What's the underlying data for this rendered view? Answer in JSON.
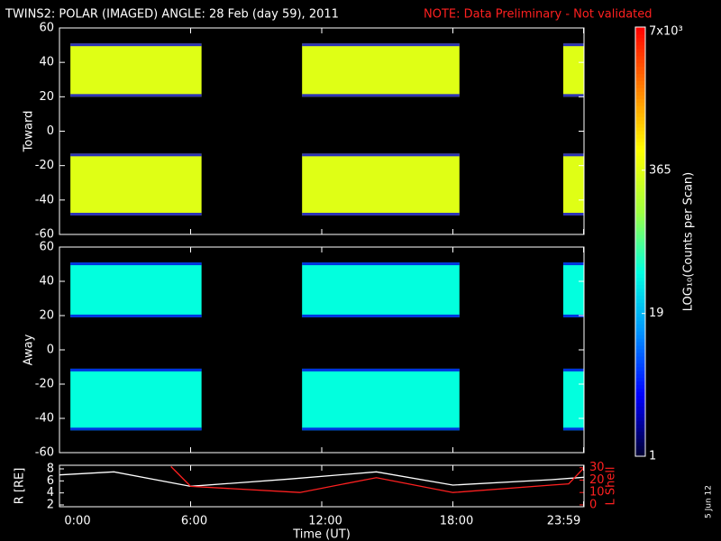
{
  "title": "TWINS2: POLAR (IMAGED) ANGLE: 28 Feb (day  59), 2011",
  "note": "NOTE: Data Preliminary - Not validated",
  "date_stamp": "5 Jun 12",
  "chart_data": [
    {
      "type": "heatmap",
      "ylabel": "Toward",
      "ylim": [
        -60,
        60
      ],
      "yticks": [
        -60,
        -40,
        -20,
        0,
        20,
        40,
        60
      ],
      "xlim": [
        0,
        24
      ],
      "intervals": [
        [
          0.5,
          6.5
        ],
        [
          11.1,
          18.3
        ],
        [
          23.05,
          24
        ]
      ],
      "bands": [
        {
          "range": [
            20,
            51
          ],
          "value": 365
        },
        {
          "range": [
            -49,
            -13
          ],
          "value": 365
        }
      ]
    },
    {
      "type": "heatmap",
      "ylabel": "Away",
      "ylim": [
        -60,
        60
      ],
      "yticks": [
        -60,
        -40,
        -20,
        0,
        20,
        40,
        60
      ],
      "xlim": [
        0,
        24
      ],
      "intervals": [
        [
          0.5,
          6.5
        ],
        [
          11.1,
          18.3
        ],
        [
          23.05,
          24
        ]
      ],
      "bands": [
        {
          "range": [
            19,
            51
          ],
          "value": 45
        },
        {
          "range": [
            -47,
            -11
          ],
          "value": 45
        }
      ]
    },
    {
      "type": "line",
      "xlabel": "Time (UT)",
      "ylabel": "R [RE]",
      "y2label": "L Shell",
      "xlim": [
        0,
        24
      ],
      "xticks": [
        {
          "value": 0,
          "label": "0:00"
        },
        {
          "value": 6,
          "label": "6:00"
        },
        {
          "value": 12,
          "label": "12:00"
        },
        {
          "value": 18,
          "label": "18:00"
        },
        {
          "value": 23.98,
          "label": "23:59"
        }
      ],
      "ylim": [
        1.7,
        8.6
      ],
      "yticks": [
        2,
        4,
        6,
        8
      ],
      "y2lim": [
        -1.5,
        32
      ],
      "y2ticks": [
        0,
        10,
        20,
        30
      ],
      "series": [
        {
          "color": "#ffffff",
          "x": [
            0,
            2.5,
            6,
            10.5,
            14.5,
            18,
            22.5,
            24
          ],
          "values": [
            7,
            7.5,
            5.1,
            6.3,
            7.5,
            5.3,
            6.2,
            6.6
          ]
        },
        {
          "color": "#ff2020",
          "axis": "y2",
          "x": [
            5.1,
            6,
            11,
            14.5,
            18,
            22.5,
            23.3,
            24
          ],
          "values": [
            31,
            15,
            10,
            22,
            10,
            16,
            17,
            30
          ]
        }
      ]
    },
    {
      "type": "colorbar",
      "label": "LOG₁₀(Counts per Scan)",
      "log": true,
      "zlim": [
        1,
        7000
      ],
      "zticks": [
        1,
        19,
        365,
        {
          "value": 7000,
          "label": "7x10³"
        }
      ],
      "colors": [
        "#000030",
        "#0000ff",
        "#0090ff",
        "#00ffe0",
        "#a0ff40",
        "#ffff00",
        "#ff8000",
        "#ff0000"
      ]
    }
  ]
}
